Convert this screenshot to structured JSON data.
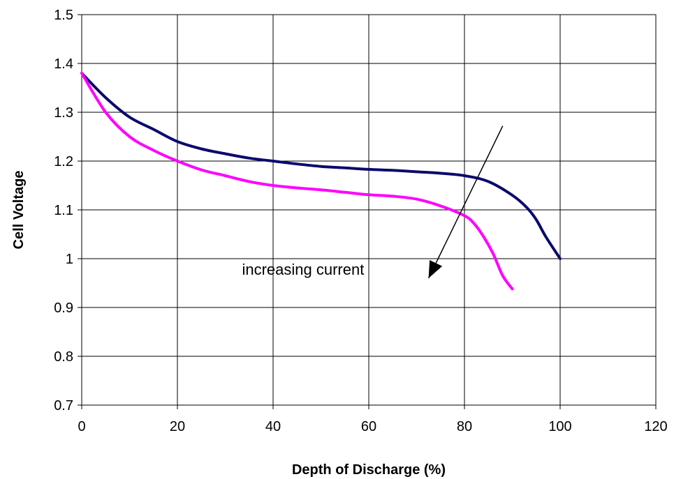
{
  "chart_data": {
    "type": "line",
    "title": "",
    "xlabel": "Depth of Discharge (%)",
    "ylabel": "Cell Voltage",
    "xlim": [
      0,
      120
    ],
    "ylim": [
      0.7,
      1.5
    ],
    "xticks": [
      0,
      20,
      40,
      60,
      80,
      100,
      120
    ],
    "xtick_labels": [
      "0",
      "20",
      "40",
      "60",
      "80",
      "100",
      "120"
    ],
    "yticks": [
      0.7,
      0.8,
      0.9,
      1.0,
      1.1,
      1.2,
      1.3,
      1.4,
      1.5
    ],
    "ytick_labels": [
      "0.7",
      "0.8",
      "0.9",
      "1",
      "1.1",
      "1.2",
      "1.3",
      "1.4",
      "1.5"
    ],
    "grid": true,
    "legend": "none",
    "series": [
      {
        "color": "#0a0a6e",
        "x": [
          0,
          5,
          10,
          15,
          20,
          25,
          30,
          35,
          40,
          45,
          50,
          55,
          60,
          65,
          70,
          75,
          80,
          85,
          90,
          93,
          95,
          97,
          100
        ],
        "y": [
          1.38,
          1.33,
          1.29,
          1.265,
          1.24,
          1.225,
          1.215,
          1.206,
          1.2,
          1.194,
          1.189,
          1.186,
          1.183,
          1.181,
          1.178,
          1.175,
          1.17,
          1.158,
          1.13,
          1.105,
          1.08,
          1.045,
          1.0
        ]
      },
      {
        "color": "#ff00ff",
        "x": [
          0,
          5,
          10,
          15,
          20,
          25,
          30,
          35,
          40,
          45,
          50,
          55,
          60,
          65,
          70,
          75,
          80,
          82,
          84,
          86,
          88,
          90
        ],
        "y": [
          1.38,
          1.3,
          1.25,
          1.222,
          1.2,
          1.182,
          1.17,
          1.158,
          1.15,
          1.145,
          1.141,
          1.136,
          1.131,
          1.128,
          1.122,
          1.108,
          1.088,
          1.072,
          1.045,
          1.01,
          0.965,
          0.938
        ]
      }
    ],
    "annotations": [
      {
        "text": "increasing current",
        "x": 33.5,
        "y": 0.967,
        "arrow": {
          "from": [
            88.0,
            1.272
          ],
          "to": [
            72.5,
            0.96
          ]
        }
      }
    ]
  }
}
